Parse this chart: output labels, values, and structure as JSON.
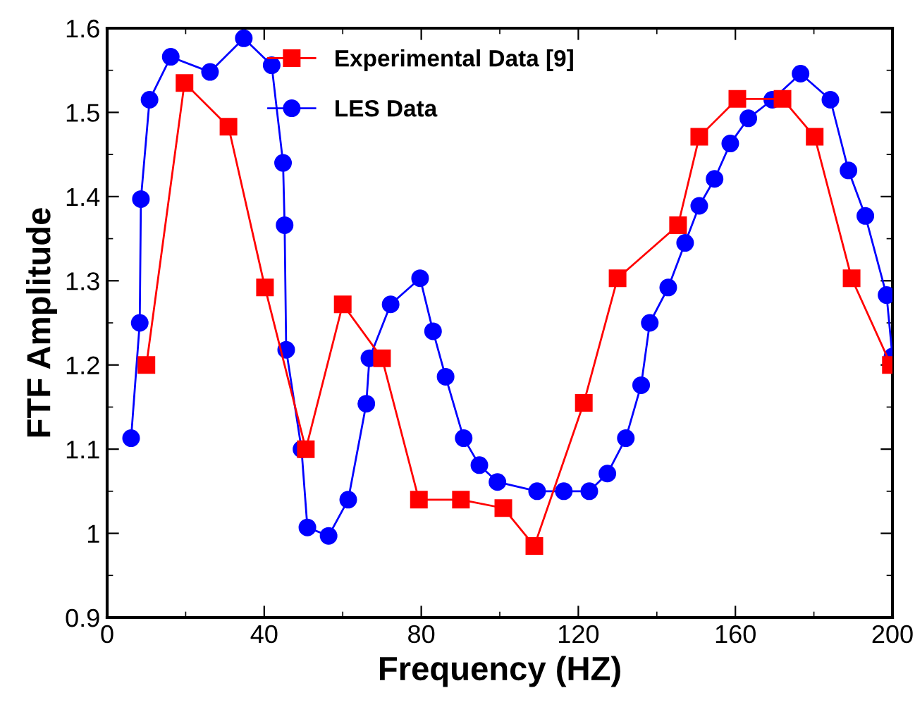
{
  "chart_data": {
    "type": "line",
    "xlabel": "Frequency (HZ)",
    "ylabel": "FTF Amplitude",
    "xlim": [
      0,
      200
    ],
    "xticks": [
      0,
      40,
      80,
      120,
      160,
      200
    ],
    "ylim": [
      0.9,
      1.6
    ],
    "yticks": [
      0.9,
      1,
      1.1,
      1.2,
      1.3,
      1.4,
      1.5,
      1.6
    ],
    "grid": false,
    "legend": "top",
    "series": [
      {
        "name": "Experimental Data [9]",
        "color": "#ff0000",
        "marker": "square",
        "x": [
          10,
          19.7,
          30.9,
          40.2,
          50.6,
          60,
          70,
          79.4,
          90.1,
          100.9,
          108.8,
          121.4,
          130,
          145.4,
          150.8,
          160.5,
          172,
          180.2,
          189.6,
          199.6
        ],
        "values": [
          1.2,
          1.535,
          1.483,
          1.292,
          1.1,
          1.272,
          1.208,
          1.04,
          1.04,
          1.03,
          0.985,
          1.155,
          1.303,
          1.366,
          1.471,
          1.516,
          1.516,
          1.471,
          1.303,
          1.2
        ]
      },
      {
        "name": "LES Data",
        "color": "#0000ff",
        "marker": "circle",
        "x": [
          6.1,
          8.3,
          8.6,
          10.8,
          16.2,
          26.2,
          34.8,
          41.9,
          44.8,
          45.2,
          45.6,
          49.5,
          51,
          56.4,
          61.4,
          66,
          66.8,
          72.2,
          79.7,
          83,
          86.2,
          90.8,
          94.8,
          99.4,
          109.5,
          116.3,
          122.8,
          127.4,
          132.1,
          136,
          138.2,
          142.9,
          147.2,
          150.8,
          154.7,
          158.7,
          163.3,
          169.4,
          176.6,
          184.2,
          188.8,
          193.1,
          198.5,
          200
        ],
        "values": [
          1.113,
          1.25,
          1.397,
          1.515,
          1.566,
          1.548,
          1.588,
          1.556,
          1.44,
          1.366,
          1.218,
          1.1,
          1.007,
          0.997,
          1.04,
          1.154,
          1.208,
          1.272,
          1.303,
          1.24,
          1.186,
          1.113,
          1.081,
          1.061,
          1.05,
          1.05,
          1.05,
          1.071,
          1.113,
          1.176,
          1.25,
          1.292,
          1.345,
          1.389,
          1.421,
          1.463,
          1.493,
          1.515,
          1.546,
          1.515,
          1.431,
          1.377,
          1.283,
          1.21
        ]
      }
    ]
  }
}
